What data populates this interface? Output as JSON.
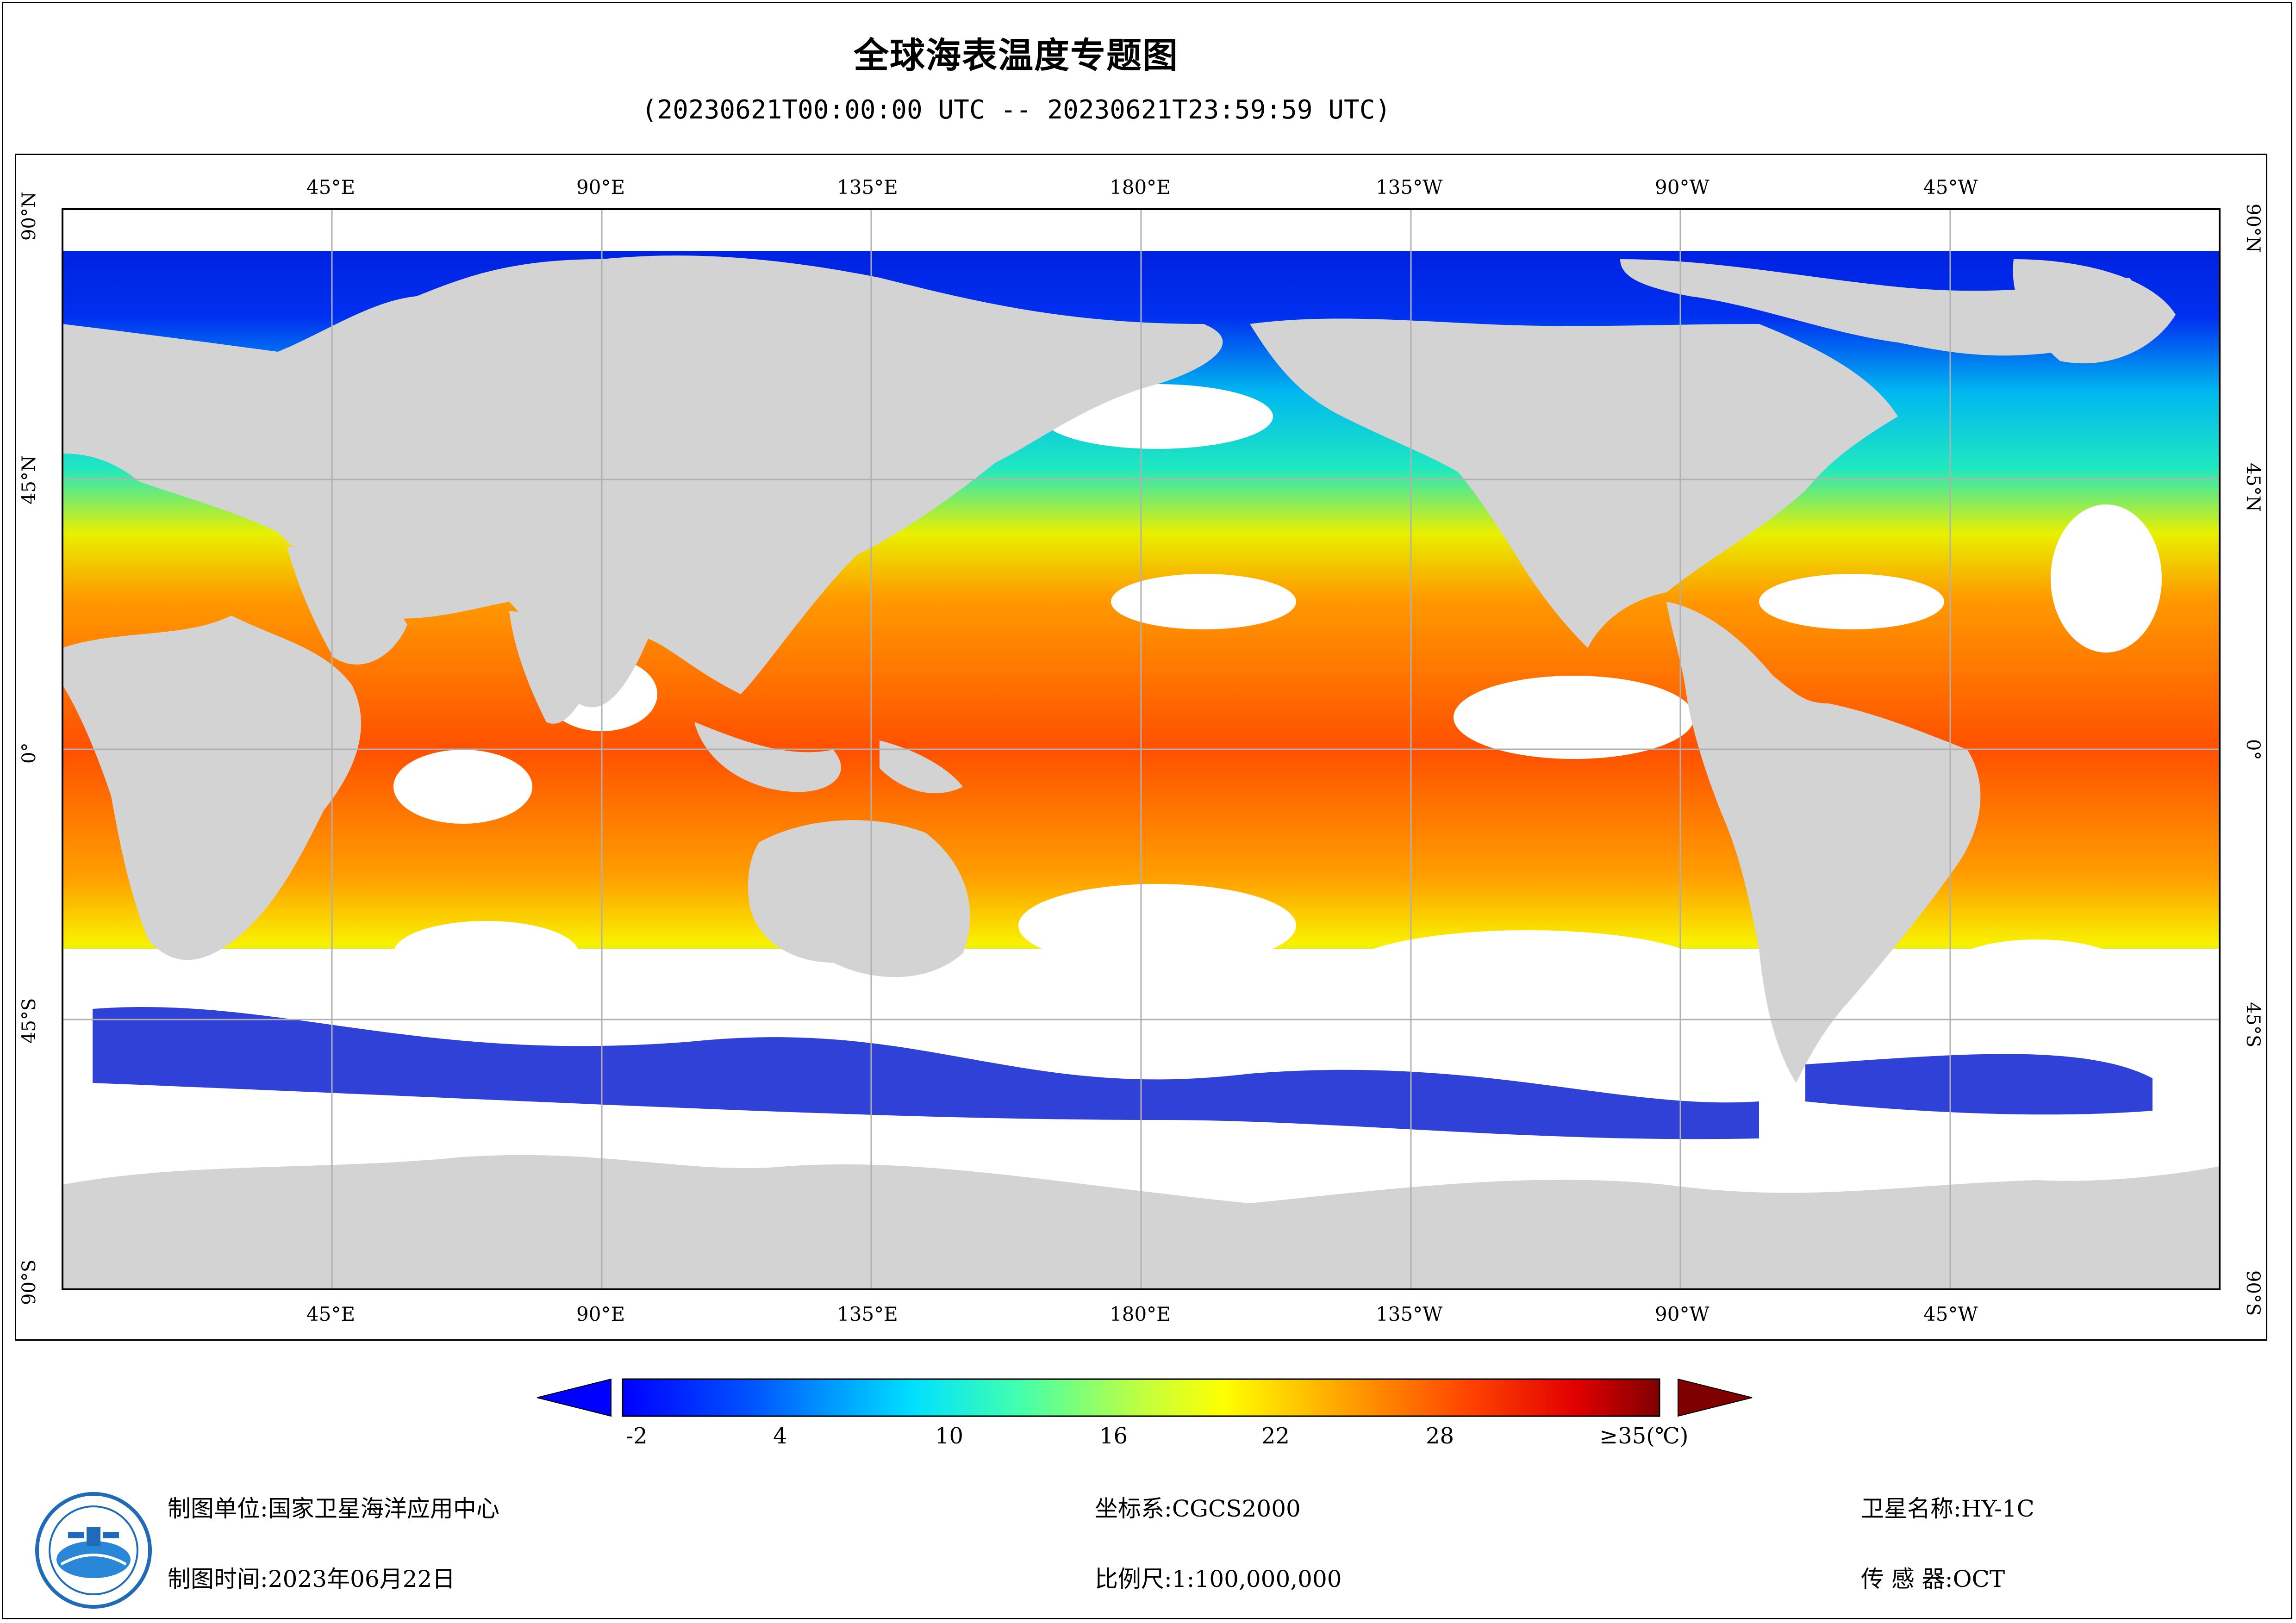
{
  "title": "全球海表温度专题图",
  "subtitle": "(20230621T00:00:00 UTC -- 20230621T23:59:59 UTC)",
  "map": {
    "lon_labels": [
      "45°E",
      "90°E",
      "135°E",
      "180°E",
      "135°W",
      "90°W",
      "45°W"
    ],
    "lat_labels": [
      "90°N",
      "45°N",
      "0°",
      "45°S",
      "90°S"
    ],
    "colors": {
      "land": "#d3d3d3",
      "cloud": "#ffffff",
      "grid": "#b0b0b0"
    }
  },
  "legend": {
    "ticks": [
      "-2",
      "4",
      "10",
      "16",
      "22",
      "28",
      "≥35(℃)"
    ],
    "min": -2,
    "max": 35,
    "unit": "℃"
  },
  "info": {
    "org_label": "制图单位:",
    "org_value": "国家卫星海洋应用中心",
    "date_label": "制图时间:",
    "date_value": "2023年06月22日",
    "crs_label": "坐标系:",
    "crs_value": "CGCS2000",
    "scale_label": "比例尺:",
    "scale_value": "1:100,000,000",
    "sat_label": "卫星名称:",
    "sat_value": "HY-1C",
    "sensor_label": "传 感 器:",
    "sensor_value": "OCT"
  },
  "logo": {
    "icon": "nsoas-logo-icon"
  }
}
